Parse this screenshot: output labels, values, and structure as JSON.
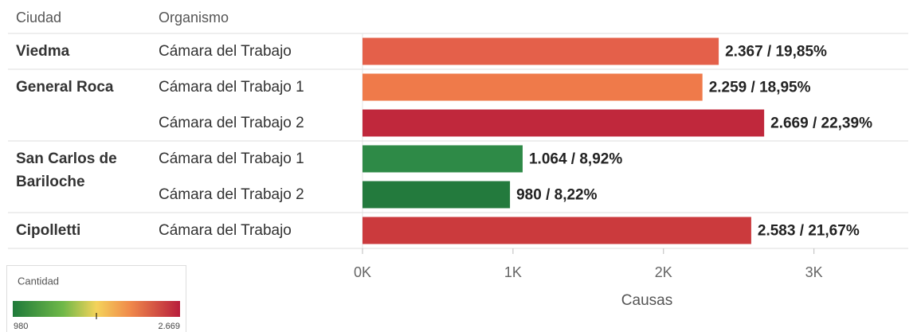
{
  "chart_data": {
    "type": "bar",
    "column_headers": [
      "Ciudad",
      "Organismo"
    ],
    "cities": [
      "Viedma",
      "General Roca",
      null,
      "San Carlos de Bariloche",
      null,
      "Cipolletti"
    ],
    "categories": [
      "Cámara del Trabajo",
      "Cámara del Trabajo 1",
      "Cámara del Trabajo 2",
      "Cámara del Trabajo 1",
      "Cámara del Trabajo 2",
      "Cámara del Trabajo"
    ],
    "values": [
      2367,
      2259,
      2669,
      1064,
      980,
      2583
    ],
    "value_labels": [
      "2.367 / 19,85%",
      "2.259 / 18,95%",
      "2.669 / 22,39%",
      "1.064 / 8,92%",
      "980 / 8,22%",
      "2.583 / 21,67%"
    ],
    "colors": [
      "#e4604a",
      "#ef7a4a",
      "#c0283c",
      "#2e8a47",
      "#237a3d",
      "#cb3a3d"
    ],
    "xlim": [
      0,
      3600
    ],
    "xticks": [
      {
        "value": 0,
        "label": "0K"
      },
      {
        "value": 1000,
        "label": "1K"
      },
      {
        "value": 2000,
        "label": "2K"
      },
      {
        "value": 3000,
        "label": "3K"
      }
    ],
    "xlabel": "Causas",
    "legend": {
      "title": "Cantidad",
      "min_label": "980",
      "max_label": "2.669"
    }
  }
}
